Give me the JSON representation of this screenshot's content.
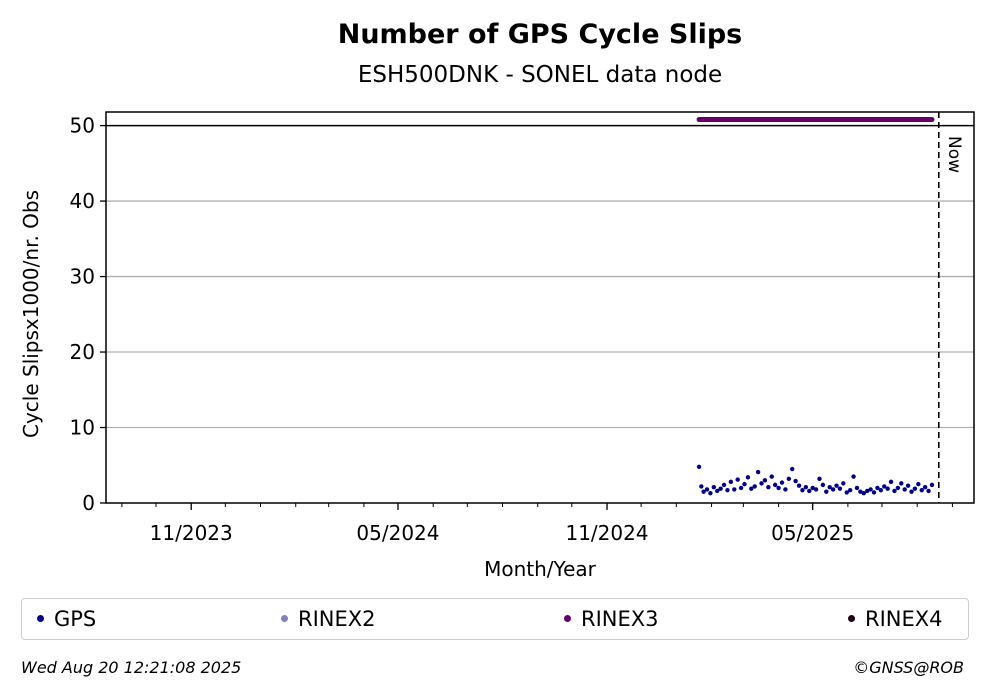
{
  "chart_data": {
    "type": "scatter",
    "title": "Number of GPS Cycle Slips",
    "subtitle": "ESH500DNK - SONEL data node",
    "xlabel": "Month/Year",
    "ylabel": "Cycle Slipsx1000/nr. Obs",
    "ylim": [
      0,
      51.8
    ],
    "yticks": [
      0,
      10,
      20,
      30,
      40,
      50
    ],
    "xlim": [
      "2023-08-18",
      "2025-09-20"
    ],
    "xtick_labels": [
      {
        "date": "2023-11-01",
        "label": "11/2023"
      },
      {
        "date": "2024-05-01",
        "label": "05/2024"
      },
      {
        "date": "2024-11-01",
        "label": "11/2024"
      },
      {
        "date": "2025-05-01",
        "label": "05/2025"
      }
    ],
    "minor_tick_dates": [
      "2023-09-01",
      "2023-10-01",
      "2023-12-01",
      "2024-01-01",
      "2024-02-01",
      "2024-03-01",
      "2024-04-01",
      "2024-06-01",
      "2024-07-01",
      "2024-08-01",
      "2024-09-01",
      "2024-10-01",
      "2024-12-01",
      "2025-01-01",
      "2025-02-01",
      "2025-03-01",
      "2025-04-01",
      "2025-06-01",
      "2025-07-01",
      "2025-08-01",
      "2025-09-01"
    ],
    "threshold_line": 50,
    "now_marker": {
      "date": "2025-08-20",
      "label": "Now"
    },
    "grid": "horizontal",
    "legend_placement": "bottom",
    "series": [
      {
        "name": "GPS",
        "color": "#00008b",
        "x": [
          "2025-01-21",
          "2025-01-23",
          "2025-01-25",
          "2025-01-28",
          "2025-01-31",
          "2025-02-03",
          "2025-02-06",
          "2025-02-09",
          "2025-02-12",
          "2025-02-15",
          "2025-02-18",
          "2025-02-21",
          "2025-02-24",
          "2025-02-27",
          "2025-03-02",
          "2025-03-05",
          "2025-03-08",
          "2025-03-11",
          "2025-03-14",
          "2025-03-17",
          "2025-03-20",
          "2025-03-23",
          "2025-03-26",
          "2025-03-29",
          "2025-04-01",
          "2025-04-04",
          "2025-04-07",
          "2025-04-10",
          "2025-04-13",
          "2025-04-16",
          "2025-04-19",
          "2025-04-22",
          "2025-04-25",
          "2025-04-28",
          "2025-05-01",
          "2025-05-04",
          "2025-05-07",
          "2025-05-10",
          "2025-05-13",
          "2025-05-16",
          "2025-05-19",
          "2025-05-22",
          "2025-05-25",
          "2025-05-28",
          "2025-05-31",
          "2025-06-03",
          "2025-06-06",
          "2025-06-09",
          "2025-06-12",
          "2025-06-15",
          "2025-06-18",
          "2025-06-21",
          "2025-06-24",
          "2025-06-27",
          "2025-06-30",
          "2025-07-03",
          "2025-07-06",
          "2025-07-09",
          "2025-07-12",
          "2025-07-15",
          "2025-07-18",
          "2025-07-21",
          "2025-07-24",
          "2025-07-27",
          "2025-07-30",
          "2025-08-02",
          "2025-08-05",
          "2025-08-08",
          "2025-08-11",
          "2025-08-14"
        ],
        "y": [
          4.8,
          2.2,
          1.5,
          1.8,
          1.3,
          2.1,
          1.6,
          1.9,
          2.4,
          1.7,
          2.8,
          1.8,
          3.1,
          2.0,
          2.5,
          3.4,
          1.9,
          2.2,
          4.1,
          2.6,
          3.0,
          2.1,
          3.5,
          2.4,
          2.0,
          2.7,
          1.8,
          3.2,
          4.5,
          2.9,
          2.3,
          1.7,
          2.1,
          1.6,
          2.0,
          1.8,
          3.2,
          2.4,
          1.5,
          2.1,
          1.8,
          2.3,
          1.9,
          2.6,
          1.4,
          1.7,
          3.5,
          2.0,
          1.5,
          1.3,
          1.6,
          1.8,
          1.4,
          2.0,
          1.7,
          2.2,
          1.9,
          2.8,
          1.6,
          2.0,
          2.6,
          1.8,
          2.3,
          1.5,
          1.9,
          2.5,
          1.7,
          2.1,
          1.6,
          2.4
        ]
      },
      {
        "name": "RINEX2",
        "color": "#8080c0",
        "x": [],
        "y": []
      },
      {
        "name": "RINEX3",
        "color": "#660066",
        "x_range": [
          "2025-01-21",
          "2025-08-14"
        ],
        "y": 50.8
      },
      {
        "name": "RINEX4",
        "color": "#1a0010",
        "x": [],
        "y": []
      }
    ]
  },
  "footer": {
    "timestamp": "Wed Aug 20 12:21:08 2025",
    "credit": "©GNSS@ROB"
  }
}
